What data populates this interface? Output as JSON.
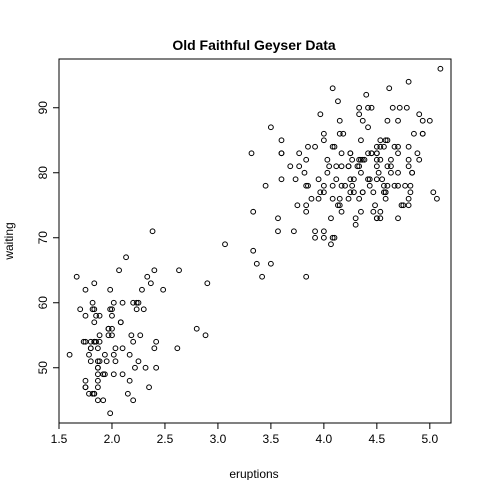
{
  "chart_data": {
    "type": "scatter",
    "title": "Old Faithful Geyser Data",
    "xlabel": "eruptions",
    "ylabel": "waiting",
    "xlim": [
      1.5,
      5.2
    ],
    "ylim": [
      41.5,
      97.5
    ],
    "x_ticks": [
      1.5,
      2.0,
      2.5,
      3.0,
      3.5,
      4.0,
      4.5,
      5.0
    ],
    "x_tick_labels": [
      "1.5",
      "2.0",
      "2.5",
      "3.0",
      "3.5",
      "4.0",
      "4.5",
      "5.0"
    ],
    "y_ticks": [
      50,
      60,
      70,
      80,
      90
    ],
    "y_tick_labels": [
      "50",
      "60",
      "70",
      "80",
      "90"
    ],
    "grid": false,
    "legend": "none",
    "marker": "open-circle",
    "points": [
      [
        3.6,
        79
      ],
      [
        1.8,
        54
      ],
      [
        3.333,
        74
      ],
      [
        2.283,
        62
      ],
      [
        4.533,
        85
      ],
      [
        2.883,
        55
      ],
      [
        4.7,
        88
      ],
      [
        3.6,
        85
      ],
      [
        1.95,
        51
      ],
      [
        4.35,
        85
      ],
      [
        1.833,
        54
      ],
      [
        3.917,
        84
      ],
      [
        4.2,
        78
      ],
      [
        1.75,
        47
      ],
      [
        4.7,
        83
      ],
      [
        2.167,
        52
      ],
      [
        1.75,
        62
      ],
      [
        4.8,
        84
      ],
      [
        1.6,
        52
      ],
      [
        4.25,
        79
      ],
      [
        1.8,
        51
      ],
      [
        1.75,
        47
      ],
      [
        3.45,
        78
      ],
      [
        3.067,
        69
      ],
      [
        4.533,
        74
      ],
      [
        3.6,
        83
      ],
      [
        1.967,
        55
      ],
      [
        4.083,
        76
      ],
      [
        3.85,
        78
      ],
      [
        4.433,
        79
      ],
      [
        4.3,
        73
      ],
      [
        4.467,
        77
      ],
      [
        3.367,
        66
      ],
      [
        4.033,
        80
      ],
      [
        3.833,
        74
      ],
      [
        2.017,
        52
      ],
      [
        1.867,
        48
      ],
      [
        4.833,
        80
      ],
      [
        1.833,
        59
      ],
      [
        4.783,
        90
      ],
      [
        4.35,
        80
      ],
      [
        1.883,
        58
      ],
      [
        4.567,
        84
      ],
      [
        1.75,
        58
      ],
      [
        4.533,
        73
      ],
      [
        3.317,
        83
      ],
      [
        3.833,
        64
      ],
      [
        2.1,
        53
      ],
      [
        4.633,
        82
      ],
      [
        2.0,
        59
      ],
      [
        4.8,
        75
      ],
      [
        4.716,
        90
      ],
      [
        1.833,
        54
      ],
      [
        4.833,
        80
      ],
      [
        1.733,
        54
      ],
      [
        4.883,
        83
      ],
      [
        3.717,
        71
      ],
      [
        1.667,
        64
      ],
      [
        4.567,
        77
      ],
      [
        4.317,
        81
      ],
      [
        2.233,
        59
      ],
      [
        4.5,
        84
      ],
      [
        1.75,
        48
      ],
      [
        4.8,
        82
      ],
      [
        1.817,
        60
      ],
      [
        4.4,
        92
      ],
      [
        4.167,
        78
      ],
      [
        4.7,
        78
      ],
      [
        2.067,
        65
      ],
      [
        4.7,
        73
      ],
      [
        4.033,
        82
      ],
      [
        1.967,
        56
      ],
      [
        4.5,
        79
      ],
      [
        4.0,
        71
      ],
      [
        1.983,
        62
      ],
      [
        5.067,
        76
      ],
      [
        2.017,
        60
      ],
      [
        4.567,
        78
      ],
      [
        3.883,
        76
      ],
      [
        3.6,
        83
      ],
      [
        4.133,
        75
      ],
      [
        4.333,
        82
      ],
      [
        4.1,
        70
      ],
      [
        2.633,
        65
      ],
      [
        4.067,
        73
      ],
      [
        4.933,
        88
      ],
      [
        3.95,
        76
      ],
      [
        4.517,
        80
      ],
      [
        2.167,
        48
      ],
      [
        4.0,
        86
      ],
      [
        2.2,
        60
      ],
      [
        4.333,
        90
      ],
      [
        1.867,
        50
      ],
      [
        4.817,
        78
      ],
      [
        1.833,
        63
      ],
      [
        4.3,
        72
      ],
      [
        4.667,
        84
      ],
      [
        3.75,
        75
      ],
      [
        1.867,
        51
      ],
      [
        4.9,
        82
      ],
      [
        2.483,
        62
      ],
      [
        4.367,
        88
      ],
      [
        2.1,
        49
      ],
      [
        4.5,
        83
      ],
      [
        4.05,
        81
      ],
      [
        1.867,
        47
      ],
      [
        4.7,
        84
      ],
      [
        1.783,
        52
      ],
      [
        4.85,
        86
      ],
      [
        3.683,
        81
      ],
      [
        4.733,
        75
      ],
      [
        2.3,
        59
      ],
      [
        4.9,
        89
      ],
      [
        4.417,
        79
      ],
      [
        1.7,
        59
      ],
      [
        4.633,
        81
      ],
      [
        2.317,
        50
      ],
      [
        4.6,
        85
      ],
      [
        1.817,
        59
      ],
      [
        4.417,
        87
      ],
      [
        2.617,
        53
      ],
      [
        4.067,
        69
      ],
      [
        4.25,
        77
      ],
      [
        1.967,
        56
      ],
      [
        4.6,
        88
      ],
      [
        3.767,
        81
      ],
      [
        1.917,
        45
      ],
      [
        4.5,
        82
      ],
      [
        2.267,
        55
      ],
      [
        4.65,
        90
      ],
      [
        1.867,
        45
      ],
      [
        4.167,
        83
      ],
      [
        2.8,
        56
      ],
      [
        4.333,
        89
      ],
      [
        1.833,
        46
      ],
      [
        4.383,
        82
      ],
      [
        1.883,
        51
      ],
      [
        4.933,
        86
      ],
      [
        2.033,
        53
      ],
      [
        3.733,
        79
      ],
      [
        4.233,
        81
      ],
      [
        2.233,
        60
      ],
      [
        4.533,
        82
      ],
      [
        4.817,
        77
      ],
      [
        4.333,
        76
      ],
      [
        1.983,
        59
      ],
      [
        4.633,
        80
      ],
      [
        2.017,
        49
      ],
      [
        5.1,
        96
      ],
      [
        1.8,
        53
      ],
      [
        5.033,
        77
      ],
      [
        4.0,
        77
      ],
      [
        2.4,
        65
      ],
      [
        4.6,
        81
      ],
      [
        3.567,
        71
      ],
      [
        4.0,
        70
      ],
      [
        4.5,
        81
      ],
      [
        4.083,
        93
      ],
      [
        1.8,
        53
      ],
      [
        3.967,
        89
      ],
      [
        2.2,
        45
      ],
      [
        4.15,
        86
      ],
      [
        2.0,
        58
      ],
      [
        3.833,
        78
      ],
      [
        3.5,
        66
      ],
      [
        4.583,
        76
      ],
      [
        2.367,
        63
      ],
      [
        5.0,
        88
      ],
      [
        1.933,
        52
      ],
      [
        4.617,
        93
      ],
      [
        1.917,
        49
      ],
      [
        2.083,
        57
      ],
      [
        4.583,
        77
      ],
      [
        3.333,
        68
      ],
      [
        4.167,
        81
      ],
      [
        4.333,
        81
      ],
      [
        4.5,
        73
      ],
      [
        2.417,
        50
      ],
      [
        4.0,
        85
      ],
      [
        4.167,
        74
      ],
      [
        1.883,
        55
      ],
      [
        4.583,
        77
      ],
      [
        4.25,
        83
      ],
      [
        3.767,
        83
      ],
      [
        2.033,
        51
      ],
      [
        4.433,
        78
      ],
      [
        4.083,
        84
      ],
      [
        1.833,
        46
      ],
      [
        4.417,
        83
      ],
      [
        2.183,
        55
      ],
      [
        4.8,
        81
      ],
      [
        1.833,
        57
      ],
      [
        4.8,
        76
      ],
      [
        4.1,
        84
      ],
      [
        3.966,
        77
      ],
      [
        4.233,
        81
      ],
      [
        3.5,
        87
      ],
      [
        4.366,
        77
      ],
      [
        2.25,
        51
      ],
      [
        4.667,
        78
      ],
      [
        2.1,
        60
      ],
      [
        4.35,
        82
      ],
      [
        4.133,
        91
      ],
      [
        1.867,
        53
      ],
      [
        4.6,
        78
      ],
      [
        1.783,
        46
      ],
      [
        4.367,
        77
      ],
      [
        3.85,
        84
      ],
      [
        1.933,
        49
      ],
      [
        4.5,
        83
      ],
      [
        2.383,
        71
      ],
      [
        4.7,
        80
      ],
      [
        1.867,
        49
      ],
      [
        3.833,
        75
      ],
      [
        3.417,
        64
      ],
      [
        4.233,
        76
      ],
      [
        2.4,
        53
      ],
      [
        4.8,
        94
      ],
      [
        2.0,
        55
      ],
      [
        4.15,
        76
      ],
      [
        1.867,
        50
      ],
      [
        4.267,
        82
      ],
      [
        1.75,
        54
      ],
      [
        4.483,
        75
      ],
      [
        4.0,
        78
      ],
      [
        4.117,
        79
      ],
      [
        4.083,
        78
      ],
      [
        4.267,
        78
      ],
      [
        3.917,
        70
      ],
      [
        4.55,
        79
      ],
      [
        4.083,
        70
      ],
      [
        2.417,
        54
      ],
      [
        4.183,
        86
      ],
      [
        2.217,
        50
      ],
      [
        4.45,
        90
      ],
      [
        1.883,
        54
      ],
      [
        1.85,
        54
      ],
      [
        4.283,
        77
      ],
      [
        3.95,
        79
      ],
      [
        2.333,
        64
      ],
      [
        4.15,
        75
      ],
      [
        2.35,
        47
      ],
      [
        4.933,
        86
      ],
      [
        2.9,
        63
      ],
      [
        4.583,
        85
      ],
      [
        3.833,
        82
      ],
      [
        2.083,
        57
      ],
      [
        4.367,
        82
      ],
      [
        2.133,
        67
      ],
      [
        4.35,
        74
      ],
      [
        2.2,
        54
      ],
      [
        4.45,
        83
      ],
      [
        3.567,
        73
      ],
      [
        4.5,
        73
      ],
      [
        4.15,
        88
      ],
      [
        3.817,
        80
      ],
      [
        3.917,
        71
      ],
      [
        4.45,
        83
      ],
      [
        2.0,
        56
      ],
      [
        4.283,
        79
      ],
      [
        4.767,
        78
      ],
      [
        4.533,
        84
      ],
      [
        1.85,
        58
      ],
      [
        4.25,
        83
      ],
      [
        1.983,
        43
      ],
      [
        2.25,
        60
      ],
      [
        4.75,
        75
      ],
      [
        4.117,
        81
      ],
      [
        2.15,
        46
      ],
      [
        4.417,
        90
      ],
      [
        1.817,
        46
      ],
      [
        4.467,
        74
      ]
    ]
  }
}
